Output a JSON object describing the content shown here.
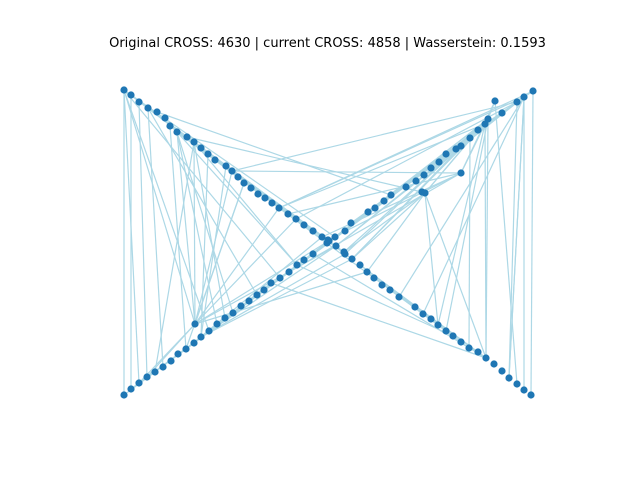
{
  "figure": {
    "title": "Original CROSS: 4630 | current CROSS: 4858 | Wasserstein: 0.1593"
  },
  "colors": {
    "node": "#1f77b4",
    "edge": "#add8e6",
    "background": "#ffffff"
  },
  "graph": {
    "layout": "two crossing diagonal chains of nodes (X shape)",
    "chains": [
      {
        "name": "descending",
        "from": [
          0,
          1
        ],
        "to": [
          1,
          0
        ]
      },
      {
        "name": "ascending",
        "from": [
          0,
          0
        ],
        "to": [
          1,
          1
        ]
      }
    ]
  }
}
